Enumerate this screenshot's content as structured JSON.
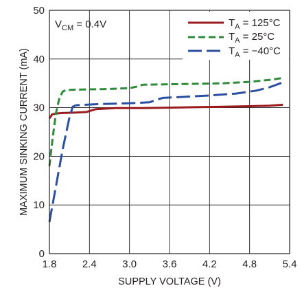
{
  "chart_data": {
    "type": "line",
    "annotation": {
      "main": "V",
      "sub": "CM",
      "rest": " = 0.4V"
    },
    "xlabel": "SUPPLY VOLTAGE (V)",
    "ylabel": "MAXIMUM SINKING CURRENT (mA)",
    "xlim": [
      1.8,
      5.4
    ],
    "ylim": [
      0,
      50
    ],
    "x_ticks": [
      "1.8",
      "2.4",
      "3.0",
      "3.6",
      "4.2",
      "4.8",
      "5.4"
    ],
    "y_ticks": [
      "0",
      "10",
      "20",
      "30",
      "40",
      "50"
    ],
    "grid": true,
    "legend_position": "top-right",
    "series": [
      {
        "legend": {
          "main": "T",
          "sub": "A",
          "rest": " = 125°C"
        },
        "color": "#9b1b1f",
        "dash": "solid",
        "x": [
          1.8,
          1.84,
          1.9,
          2.0,
          2.2,
          2.35,
          2.5,
          2.8,
          3.2,
          3.6,
          4.0,
          4.4,
          4.8,
          5.1,
          5.3
        ],
        "y": [
          27.8,
          28.6,
          28.8,
          28.9,
          29.0,
          29.1,
          29.7,
          29.9,
          29.9,
          30.0,
          30.1,
          30.2,
          30.3,
          30.4,
          30.6
        ]
      },
      {
        "legend": {
          "main": "T",
          "sub": "A",
          "rest": " = 25°C"
        },
        "color": "#2e8b3a",
        "dash": "short",
        "x": [
          1.8,
          1.85,
          1.9,
          1.95,
          2.0,
          2.05,
          2.2,
          2.6,
          3.0,
          3.1,
          3.2,
          3.6,
          4.0,
          4.4,
          4.8,
          5.1,
          5.3
        ],
        "y": [
          18.0,
          24.0,
          29.0,
          32.0,
          33.3,
          33.6,
          33.7,
          33.8,
          34.0,
          34.3,
          34.7,
          34.8,
          34.9,
          35.0,
          35.3,
          35.7,
          36.1
        ]
      },
      {
        "legend": {
          "main": "T",
          "sub": "A",
          "rest": " = −40°C"
        },
        "color": "#2b4fa0",
        "dash": "long",
        "x": [
          1.8,
          1.9,
          2.0,
          2.1,
          2.15,
          2.2,
          2.5,
          3.0,
          3.3,
          3.4,
          3.5,
          3.8,
          4.2,
          4.6,
          4.9,
          5.1,
          5.3
        ],
        "y": [
          6.5,
          14.0,
          21.5,
          28.0,
          30.2,
          30.5,
          30.7,
          30.9,
          31.1,
          31.6,
          32.0,
          32.2,
          32.5,
          32.9,
          33.5,
          34.2,
          35.2
        ]
      }
    ]
  }
}
